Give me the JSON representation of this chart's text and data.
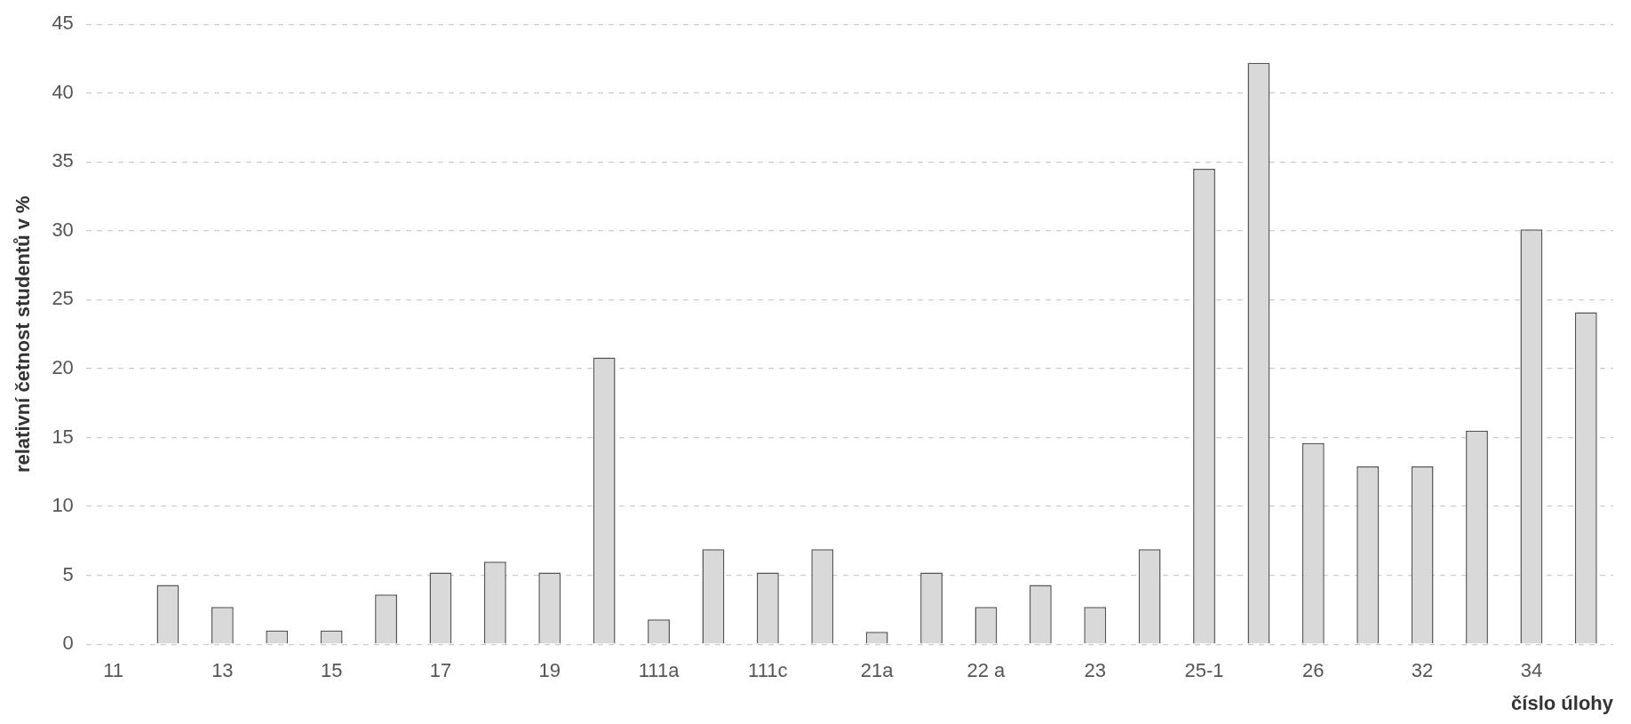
{
  "chart_data": {
    "type": "bar",
    "xlabel": "číslo úlohy",
    "ylabel": "relativní četnost studentů v %",
    "categories": [
      "11",
      null,
      "13",
      null,
      "15",
      null,
      "17",
      null,
      "19",
      null,
      "111a",
      null,
      "111c",
      null,
      "21a",
      null,
      "22 a",
      null,
      "23",
      null,
      "25-1",
      null,
      "26",
      null,
      "32",
      null,
      "34",
      null
    ],
    "values": [
      0,
      4.3,
      2.7,
      1,
      1,
      3.6,
      5.2,
      6,
      5.2,
      20.8,
      1.8,
      6.9,
      5.2,
      6.9,
      0.9,
      5.2,
      2.7,
      4.3,
      2.7,
      6.9,
      34.5,
      42.2,
      14.6,
      12.9,
      12.9,
      15.5,
      30.1,
      24.1
    ],
    "color": "#d9d9d9",
    "ylim": [
      0,
      45
    ],
    "yticks": [
      0,
      5,
      10,
      15,
      20,
      25,
      30,
      35,
      40,
      45
    ],
    "grid": "y"
  }
}
